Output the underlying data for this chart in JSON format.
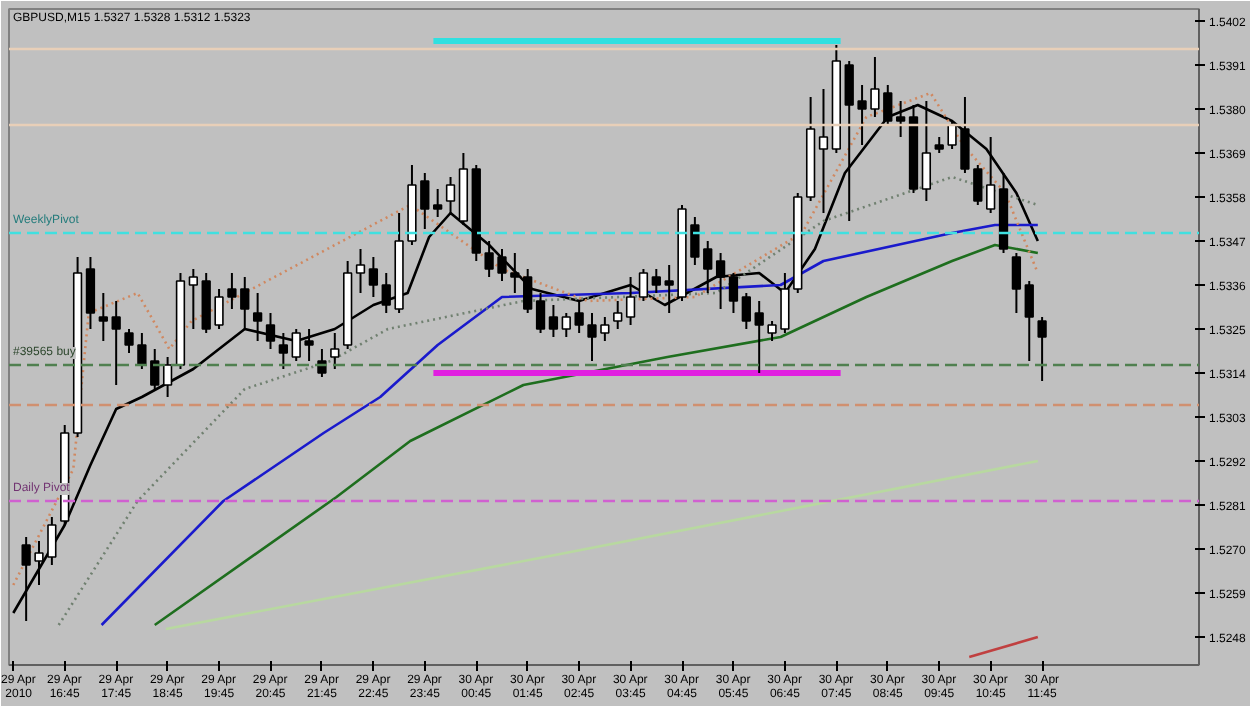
{
  "chart_data": {
    "type": "candlestick",
    "title": "GBPUSD,M15  1.5327 1.5328 1.5312 1.5323",
    "x": [
      "2010-04-29T16:00",
      "2010-04-29T16:15",
      "2010-04-29T16:30",
      "2010-04-29T16:45",
      "2010-04-29T17:00",
      "2010-04-29T17:15",
      "2010-04-29T17:30",
      "2010-04-29T17:45",
      "2010-04-29T18:00",
      "2010-04-29T18:15",
      "2010-04-29T18:30",
      "2010-04-29T18:45",
      "2010-04-29T19:00",
      "2010-04-29T19:15",
      "2010-04-29T19:30",
      "2010-04-29T19:45",
      "2010-04-29T20:00",
      "2010-04-29T20:15",
      "2010-04-29T20:30",
      "2010-04-29T20:45",
      "2010-04-29T21:00",
      "2010-04-29T21:15",
      "2010-04-29T21:30",
      "2010-04-29T21:45",
      "2010-04-29T22:00",
      "2010-04-29T22:15",
      "2010-04-29T22:30",
      "2010-04-29T22:45",
      "2010-04-29T23:00",
      "2010-04-29T23:15",
      "2010-04-29T23:30",
      "2010-04-29T23:45",
      "2010-04-30T00:00",
      "2010-04-30T00:15",
      "2010-04-30T00:30",
      "2010-04-30T00:45",
      "2010-04-30T01:00",
      "2010-04-30T01:15",
      "2010-04-30T01:30",
      "2010-04-30T01:45",
      "2010-04-30T02:00",
      "2010-04-30T02:15",
      "2010-04-30T02:30",
      "2010-04-30T02:45",
      "2010-04-30T03:00",
      "2010-04-30T03:15",
      "2010-04-30T03:30",
      "2010-04-30T03:45",
      "2010-04-30T04:00",
      "2010-04-30T04:15",
      "2010-04-30T04:30",
      "2010-04-30T04:45",
      "2010-04-30T05:00",
      "2010-04-30T05:15",
      "2010-04-30T05:30",
      "2010-04-30T05:45",
      "2010-04-30T06:00",
      "2010-04-30T06:15",
      "2010-04-30T06:30",
      "2010-04-30T06:45",
      "2010-04-30T07:00",
      "2010-04-30T07:15",
      "2010-04-30T07:30",
      "2010-04-30T07:45",
      "2010-04-30T08:00",
      "2010-04-30T08:15",
      "2010-04-30T08:30",
      "2010-04-30T08:45",
      "2010-04-30T09:00",
      "2010-04-30T09:15",
      "2010-04-30T09:30",
      "2010-04-30T09:45",
      "2010-04-30T10:00",
      "2010-04-30T10:15",
      "2010-04-30T10:30",
      "2010-04-30T10:45",
      "2010-04-30T11:00",
      "2010-04-30T11:15",
      "2010-04-30T11:30",
      "2010-04-30T11:45"
    ],
    "ohlc": [
      [
        1.5271,
        1.5273,
        1.5252,
        1.5266
      ],
      [
        1.5267,
        1.5272,
        1.5261,
        1.5269
      ],
      [
        1.5268,
        1.5278,
        1.5266,
        1.5276
      ],
      [
        1.5277,
        1.5301,
        1.5276,
        1.5299
      ],
      [
        1.5299,
        1.5343,
        1.5298,
        1.5339
      ],
      [
        1.534,
        1.5343,
        1.5325,
        1.5329
      ],
      [
        1.5328,
        1.5334,
        1.5322,
        1.5327
      ],
      [
        1.5328,
        1.5332,
        1.5311,
        1.5325
      ],
      [
        1.5324,
        1.5325,
        1.5319,
        1.5321
      ],
      [
        1.5321,
        1.5324,
        1.5315,
        1.5316
      ],
      [
        1.5317,
        1.532,
        1.531,
        1.5311
      ],
      [
        1.5311,
        1.5318,
        1.5308,
        1.5316
      ],
      [
        1.5316,
        1.5339,
        1.5315,
        1.5337
      ],
      [
        1.5336,
        1.534,
        1.5325,
        1.5338
      ],
      [
        1.5337,
        1.5339,
        1.5324,
        1.5325
      ],
      [
        1.5326,
        1.5335,
        1.5325,
        1.5333
      ],
      [
        1.5335,
        1.5339,
        1.533,
        1.5333
      ],
      [
        1.5335,
        1.5338,
        1.5325,
        1.533
      ],
      [
        1.5329,
        1.5334,
        1.5322,
        1.5327
      ],
      [
        1.5326,
        1.5329,
        1.532,
        1.5322
      ],
      [
        1.5321,
        1.5324,
        1.5315,
        1.5319
      ],
      [
        1.5318,
        1.5325,
        1.5317,
        1.5324
      ],
      [
        1.5322,
        1.5325,
        1.5317,
        1.5321
      ],
      [
        1.5317,
        1.532,
        1.5313,
        1.5314
      ],
      [
        1.5318,
        1.5324,
        1.5315,
        1.532
      ],
      [
        1.5321,
        1.5342,
        1.532,
        1.5339
      ],
      [
        1.5339,
        1.5345,
        1.5334,
        1.5341
      ],
      [
        1.534,
        1.5343,
        1.5333,
        1.5336
      ],
      [
        1.5336,
        1.5339,
        1.5329,
        1.5331
      ],
      [
        1.533,
        1.5354,
        1.5329,
        1.5347
      ],
      [
        1.5347,
        1.5366,
        1.5346,
        1.5361
      ],
      [
        1.5362,
        1.5364,
        1.535,
        1.5355
      ],
      [
        1.5356,
        1.536,
        1.5353,
        1.5355
      ],
      [
        1.5357,
        1.5363,
        1.5354,
        1.5361
      ],
      [
        1.5352,
        1.5369,
        1.5351,
        1.5365
      ],
      [
        1.5365,
        1.5366,
        1.5342,
        1.5344
      ],
      [
        1.5344,
        1.5347,
        1.5338,
        1.534
      ],
      [
        1.5343,
        1.5345,
        1.5337,
        1.5339
      ],
      [
        1.5339,
        1.5344,
        1.5334,
        1.5338
      ],
      [
        1.5338,
        1.534,
        1.5329,
        1.533
      ],
      [
        1.5332,
        1.5334,
        1.5324,
        1.5325
      ],
      [
        1.5328,
        1.5331,
        1.5323,
        1.5325
      ],
      [
        1.5325,
        1.5329,
        1.5323,
        1.5328
      ],
      [
        1.5329,
        1.5332,
        1.5324,
        1.5326
      ],
      [
        1.5326,
        1.5329,
        1.5317,
        1.5323
      ],
      [
        1.5324,
        1.5328,
        1.5322,
        1.5326
      ],
      [
        1.5327,
        1.5332,
        1.5325,
        1.5329
      ],
      [
        1.5328,
        1.5338,
        1.5326,
        1.5333
      ],
      [
        1.5333,
        1.534,
        1.5332,
        1.5339
      ],
      [
        1.5338,
        1.534,
        1.5334,
        1.5336
      ],
      [
        1.5337,
        1.5341,
        1.5329,
        1.5336
      ],
      [
        1.5333,
        1.5356,
        1.5332,
        1.5355
      ],
      [
        1.5351,
        1.5353,
        1.5341,
        1.5343
      ],
      [
        1.5345,
        1.5347,
        1.5334,
        1.534
      ],
      [
        1.5342,
        1.5344,
        1.533,
        1.5338
      ],
      [
        1.5338,
        1.5339,
        1.5329,
        1.5332
      ],
      [
        1.5333,
        1.5334,
        1.5325,
        1.5327
      ],
      [
        1.5329,
        1.5332,
        1.5314,
        1.5326
      ],
      [
        1.5324,
        1.5327,
        1.5322,
        1.5326
      ],
      [
        1.5325,
        1.5339,
        1.5324,
        1.5335
      ],
      [
        1.5335,
        1.5359,
        1.5334,
        1.5358
      ],
      [
        1.5358,
        1.5383,
        1.5357,
        1.5375
      ],
      [
        1.537,
        1.5385,
        1.5354,
        1.5373
      ],
      [
        1.537,
        1.5396,
        1.5369,
        1.5392
      ],
      [
        1.5391,
        1.5392,
        1.5352,
        1.5381
      ],
      [
        1.5382,
        1.5386,
        1.5371,
        1.538
      ],
      [
        1.538,
        1.5393,
        1.5378,
        1.5385
      ],
      [
        1.5384,
        1.5386,
        1.5376,
        1.5377
      ],
      [
        1.5378,
        1.5382,
        1.5373,
        1.5377
      ],
      [
        1.5378,
        1.5381,
        1.5359,
        1.536
      ],
      [
        1.536,
        1.5382,
        1.5357,
        1.5369
      ],
      [
        1.5371,
        1.5373,
        1.5369,
        1.537
      ],
      [
        1.5371,
        1.5377,
        1.537,
        1.5376
      ],
      [
        1.5375,
        1.5383,
        1.5364,
        1.5365
      ],
      [
        1.5365,
        1.5366,
        1.5356,
        1.5357
      ],
      [
        1.5355,
        1.5373,
        1.5354,
        1.5361
      ],
      [
        1.536,
        1.5364,
        1.5344,
        1.5345
      ],
      [
        1.5343,
        1.5344,
        1.5329,
        1.5335
      ],
      [
        1.5336,
        1.5337,
        1.5317,
        1.5328
      ],
      [
        1.5327,
        1.5328,
        1.5312,
        1.5323
      ]
    ],
    "series": [
      {
        "type": "line",
        "color": "#000000",
        "line_style": "solid",
        "x": [
          "2010-04-29T15:45",
          "2010-04-29T16:45",
          "2010-04-29T17:15",
          "2010-04-29T17:45",
          "2010-04-29T18:15",
          "2010-04-29T19:15",
          "2010-04-29T20:15",
          "2010-04-29T21:15",
          "2010-04-29T22:00",
          "2010-04-29T22:45",
          "2010-04-29T23:25",
          "2010-04-29T23:50",
          "2010-04-30T00:15",
          "2010-04-30T01:00",
          "2010-04-30T01:50",
          "2010-04-30T02:45",
          "2010-04-30T03:45",
          "2010-04-30T04:25",
          "2010-04-30T05:25",
          "2010-04-30T06:15",
          "2010-04-30T06:45",
          "2010-04-30T07:20",
          "2010-04-30T07:55",
          "2010-04-30T08:45",
          "2010-04-30T09:20",
          "2010-04-30T10:00",
          "2010-04-30T10:40",
          "2010-04-30T11:15",
          "2010-04-30T11:40"
        ],
        "values": [
          1.5254,
          1.5276,
          1.5291,
          1.5305,
          1.5308,
          1.5315,
          1.5325,
          1.5322,
          1.5325,
          1.5331,
          1.5334,
          1.5348,
          1.5354,
          1.5346,
          1.5335,
          1.5332,
          1.5336,
          1.5331,
          1.5338,
          1.5339,
          1.5334,
          1.5345,
          1.5364,
          1.5378,
          1.5381,
          1.5377,
          1.537,
          1.5359,
          1.5347
        ]
      },
      {
        "type": "line",
        "color": "#1a1acc",
        "line_style": "solid",
        "x": [
          "2010-04-29T17:28",
          "2010-04-29T19:50",
          "2010-04-29T21:47",
          "2010-04-29T22:53",
          "2010-04-30T00:00",
          "2010-04-30T01:15",
          "2010-04-30T03:45",
          "2010-04-30T06:40",
          "2010-04-30T07:30",
          "2010-04-30T10:00",
          "2010-04-30T10:50",
          "2010-04-30T11:40"
        ],
        "values": [
          1.5251,
          1.5282,
          1.5299,
          1.5308,
          1.5321,
          1.5333,
          1.5334,
          1.5336,
          1.5342,
          1.5349,
          1.5351,
          1.5351
        ]
      },
      {
        "type": "line",
        "color": "#1e6e1e",
        "line_style": "solid",
        "x": [
          "2010-04-29T18:30",
          "2010-04-29T22:02",
          "2010-04-29T23:28",
          "2010-04-30T01:40",
          "2010-04-30T04:28",
          "2010-04-30T06:40",
          "2010-04-30T08:20",
          "2010-04-30T10:00",
          "2010-04-30T10:50",
          "2010-04-30T11:40"
        ],
        "values": [
          1.5251,
          1.5283,
          1.5297,
          1.5311,
          1.5318,
          1.5323,
          1.5333,
          1.5342,
          1.5346,
          1.5344
        ]
      },
      {
        "type": "line",
        "color": "#708070",
        "line_style": "dotted",
        "x": [
          "2010-04-29T16:38",
          "2010-04-29T18:10",
          "2010-04-29T20:15",
          "2010-04-29T21:55",
          "2010-04-29T23:02",
          "2010-04-30T01:40",
          "2010-04-30T05:25",
          "2010-04-30T07:30",
          "2010-04-30T10:00",
          "2010-04-30T11:40"
        ],
        "values": [
          1.5251,
          1.5282,
          1.531,
          1.5317,
          1.5325,
          1.5332,
          1.5334,
          1.5352,
          1.5363,
          1.5356
        ]
      },
      {
        "type": "line",
        "color": "#d08860",
        "line_style": "dotted",
        "x": [
          "2010-04-29T15:45",
          "2010-04-29T16:55",
          "2010-04-29T17:13",
          "2010-04-29T18:10",
          "2010-04-29T18:47",
          "2010-04-29T19:13",
          "2010-04-29T23:28",
          "2010-04-30T01:15",
          "2010-04-30T02:55",
          "2010-04-30T05:00",
          "2010-04-30T07:05",
          "2010-04-30T08:20",
          "2010-04-30T09:35",
          "2010-04-30T10:13",
          "2010-04-30T11:02",
          "2010-04-30T11:40"
        ],
        "values": [
          1.5261,
          1.529,
          1.5329,
          1.5334,
          1.532,
          1.5327,
          1.5356,
          1.534,
          1.5332,
          1.5333,
          1.5349,
          1.5378,
          1.5384,
          1.5371,
          1.5359,
          1.5339
        ]
      },
      {
        "type": "line",
        "color": "#b8d8a0",
        "line_style": "solid",
        "x": [
          "2010-04-29T18:43",
          "2010-04-30T02:05",
          "2010-04-30T11:40"
        ],
        "values": [
          1.525,
          1.5268,
          1.5292
        ]
      },
      {
        "type": "line",
        "color": "#c04040",
        "line_style": "solid",
        "x": [
          "2010-04-30T10:20",
          "2010-04-30T11:40"
        ],
        "values": [
          1.5243,
          1.5248
        ]
      },
      {
        "type": "line",
        "color": "#30e0e0",
        "line_style": "solid",
        "x": [
          "2010-04-29T23:55",
          "2010-04-30T07:50"
        ],
        "values": [
          1.5397,
          1.5397
        ]
      },
      {
        "type": "line",
        "color": "#e020e0",
        "line_style": "solid",
        "x": [
          "2010-04-29T23:55",
          "2010-04-30T07:50"
        ],
        "values": [
          1.5314,
          1.5314
        ]
      }
    ],
    "ref_lines": [
      {
        "axis": "y",
        "value": 1.5395,
        "color": "#e8cfb8",
        "line_style": "solid"
      },
      {
        "axis": "y",
        "value": 1.5376,
        "color": "#e8cfb8",
        "line_style": "solid"
      },
      {
        "axis": "y",
        "value": 1.5349,
        "color": "#40e0e0",
        "line_style": "dashed",
        "label": "WeeklyPivot"
      },
      {
        "axis": "y",
        "value": 1.5316,
        "color": "#508050",
        "line_style": "dashed",
        "label": "#39565 buy"
      },
      {
        "axis": "y",
        "value": 1.5306,
        "color": "#d09070",
        "line_style": "dashed"
      },
      {
        "axis": "y",
        "value": 1.5282,
        "color": "#d060d0",
        "line_style": "dashed",
        "label": "Daily Pivot"
      }
    ],
    "xlim": [
      "2010-04-29T15:40",
      "2010-04-30T14:48"
    ],
    "xticks": [
      {
        "value": "2010-04-29T15:45",
        "label": "29 Apr 2010"
      },
      {
        "value": "2010-04-29T16:45",
        "label": "29 Apr 16:45"
      },
      {
        "value": "2010-04-29T17:45",
        "label": "29 Apr 17:45"
      },
      {
        "value": "2010-04-29T18:45",
        "label": "29 Apr 18:45"
      },
      {
        "value": "2010-04-29T19:45",
        "label": "29 Apr 19:45"
      },
      {
        "value": "2010-04-29T20:45",
        "label": "29 Apr 20:45"
      },
      {
        "value": "2010-04-29T21:45",
        "label": "29 Apr 21:45"
      },
      {
        "value": "2010-04-29T22:45",
        "label": "29 Apr 22:45"
      },
      {
        "value": "2010-04-29T23:45",
        "label": "29 Apr 23:45"
      },
      {
        "value": "2010-04-30T00:45",
        "label": "30 Apr 00:45"
      },
      {
        "value": "2010-04-30T01:45",
        "label": "30 Apr 01:45"
      },
      {
        "value": "2010-04-30T02:45",
        "label": "30 Apr 02:45"
      },
      {
        "value": "2010-04-30T03:45",
        "label": "30 Apr 03:45"
      },
      {
        "value": "2010-04-30T04:45",
        "label": "30 Apr 04:45"
      },
      {
        "value": "2010-04-30T05:45",
        "label": "30 Apr 05:45"
      },
      {
        "value": "2010-04-30T06:45",
        "label": "30 Apr 06:45"
      },
      {
        "value": "2010-04-30T07:45",
        "label": "30 Apr 07:45"
      },
      {
        "value": "2010-04-30T08:45",
        "label": "30 Apr 08:45"
      },
      {
        "value": "2010-04-30T09:45",
        "label": "30 Apr 09:45"
      },
      {
        "value": "2010-04-30T10:45",
        "label": "30 Apr 10:45"
      },
      {
        "value": "2010-04-30T11:45",
        "label": "30 Apr 11:45"
      }
    ],
    "ylim": [
      1.5241,
      1.5405
    ],
    "yticks": [
      1.5402,
      1.5391,
      {
        "value": 1.538,
        "label": "1.5380"
      },
      1.5369,
      1.5358,
      1.5347,
      1.5336,
      1.5325,
      1.5314,
      1.5303,
      1.5292,
      1.5281,
      {
        "value": 1.527,
        "label": "1.5270"
      },
      1.5259,
      1.5248
    ]
  }
}
